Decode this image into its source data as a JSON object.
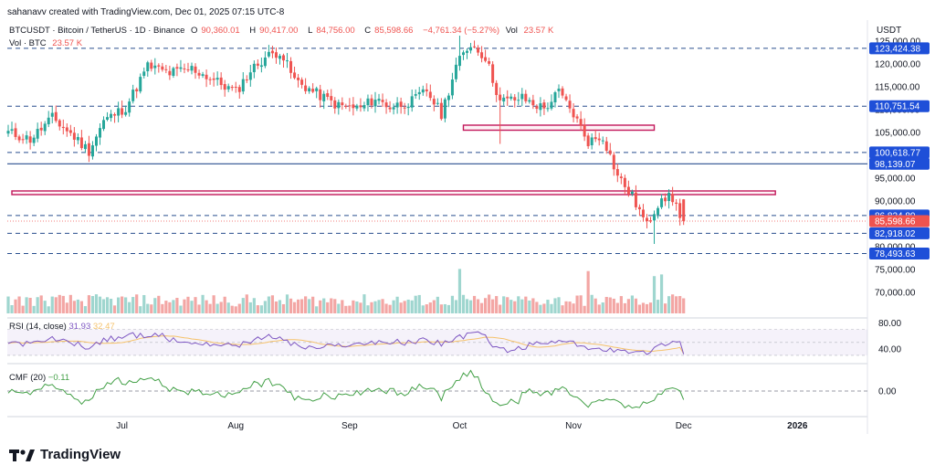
{
  "credit": "sahanavv created with TradingView.com, Dec 01, 2025 07:15 UTC-8",
  "legend": {
    "symbol": "BTCUSDT · Bitcoin / TetherUS · 1D · Binance",
    "o_label": "O",
    "open": "90,360.01",
    "h_label": "H",
    "high": "90,417.00",
    "l_label": "L",
    "low": "84,756.00",
    "c_label": "C",
    "close": "85,598.66",
    "change": "−4,761.34 (−5.27%)",
    "vol_label": "Vol",
    "vol_value": "23.57 K",
    "vol_line_label": "Vol · BTC",
    "vol_line_value": "23.57 K"
  },
  "currency": "USDT",
  "rsi_label": "RSI (14, close)",
  "rsi_value": "31.93",
  "rsi_ma": "32.47",
  "cmf_label": "CMF (20)",
  "cmf_value": "−0.11",
  "brand": "TradingView",
  "colors": {
    "up": "#26a69a",
    "down": "#ef5350",
    "vol_up": "#9fd6cf",
    "vol_down": "#f3a6a4",
    "dashed": "#2a4f8f",
    "band": "#c2185b",
    "rsi": "#7e57c2",
    "rsi_ma": "#f5c26b",
    "cmf": "#43a047",
    "badge": "#1e4fd8",
    "badge_current": "#ef5350"
  },
  "chart_data": {
    "type": "candlestick",
    "title": "BTCUSDT · Bitcoin / TetherUS · 1D · Binance",
    "ylim": [
      65000,
      126000
    ],
    "y_ticks": [
      "70,000.00",
      "75,000.00",
      "80,000.00",
      "85,000.00",
      "90,000.00",
      "95,000.00",
      "100,000.00",
      "105,000.00",
      "110,000.00",
      "115,000.00",
      "120,000.00",
      "125,000.00"
    ],
    "x_ticks": [
      "Jul",
      "Aug",
      "Sep",
      "Oct",
      "Nov",
      "Dec",
      "2026"
    ],
    "x_tick_index": [
      31,
      62,
      93,
      123,
      154,
      184,
      215
    ],
    "last_index": 184,
    "levels": [
      {
        "price": 123424.38,
        "label": "123,424.38",
        "style": "dashed"
      },
      {
        "price": 110751.54,
        "label": "110,751.54",
        "style": "dashed"
      },
      {
        "price": 100618.77,
        "label": "100,618.77",
        "style": "dashed"
      },
      {
        "price": 98139.07,
        "label": "98,139.07",
        "style": "solid"
      },
      {
        "price": 86824.8,
        "label": "86,824.80",
        "style": "dashed"
      },
      {
        "price": 85598.66,
        "label": "85,598.66",
        "style": "current"
      },
      {
        "price": 82918.02,
        "label": "82,918.02",
        "style": "dashed"
      },
      {
        "price": 78493.63,
        "label": "78,493.63",
        "style": "dashed"
      }
    ],
    "zones": [
      {
        "from_index": 124,
        "to_index": 176,
        "low": 105500,
        "high": 106600
      },
      {
        "from_index": 1,
        "to_index": 209,
        "low": 91500,
        "high": 92200
      }
    ],
    "anchors": [
      [
        0,
        105000
      ],
      [
        6,
        103500
      ],
      [
        12,
        108200
      ],
      [
        18,
        104000
      ],
      [
        22,
        101000
      ],
      [
        26,
        107500
      ],
      [
        32,
        110500
      ],
      [
        38,
        119500
      ],
      [
        44,
        118000
      ],
      [
        50,
        119000
      ],
      [
        56,
        116500
      ],
      [
        62,
        113800
      ],
      [
        66,
        118500
      ],
      [
        70,
        121500
      ],
      [
        74,
        122800
      ],
      [
        78,
        116500
      ],
      [
        84,
        113500
      ],
      [
        90,
        110800
      ],
      [
        96,
        110300
      ],
      [
        100,
        112500
      ],
      [
        104,
        110600
      ],
      [
        110,
        111800
      ],
      [
        114,
        114200
      ],
      [
        118,
        109000
      ],
      [
        122,
        119500
      ],
      [
        126,
        124500
      ],
      [
        130,
        121500
      ],
      [
        134,
        111800
      ],
      [
        140,
        112500
      ],
      [
        146,
        110200
      ],
      [
        150,
        113800
      ],
      [
        154,
        109000
      ],
      [
        158,
        103000
      ],
      [
        162,
        104200
      ],
      [
        166,
        95500
      ],
      [
        170,
        91000
      ],
      [
        174,
        84600
      ],
      [
        178,
        91200
      ],
      [
        181,
        90400
      ],
      [
        184,
        85600
      ]
    ],
    "rsi": {
      "ylim": [
        20,
        85
      ],
      "ticks": [
        "80.00",
        "40.00"
      ],
      "last": 31.93,
      "ma_last": 32.47
    },
    "cmf": {
      "ylim": [
        -0.3,
        0.3
      ],
      "ticks": [
        "0.00"
      ],
      "last": -0.11
    }
  }
}
